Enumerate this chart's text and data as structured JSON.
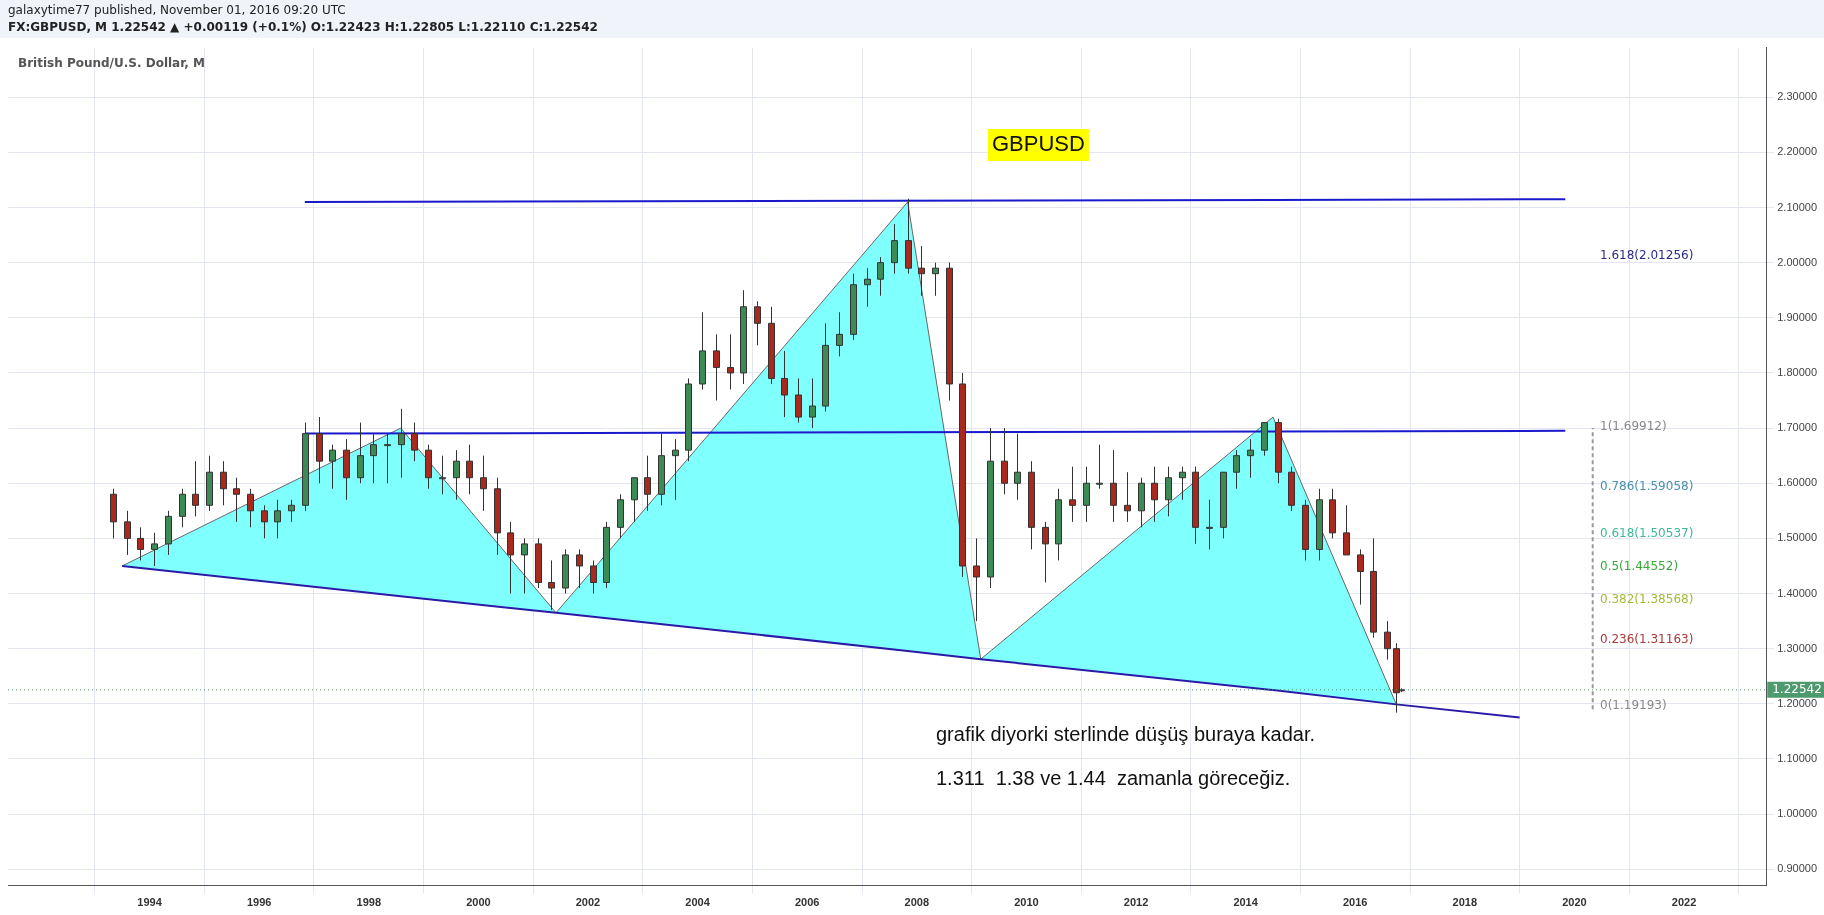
{
  "chart_data": {
    "type": "candlestick",
    "title": "FX:GBPUSD, M 1.22542 ▲ +0.00119 (+0.1%) O:1.22423 H:1.22805 L:1.22110 C:1.22542",
    "subtitle": "British Pound/U.S. Dollar, M",
    "x": [
      "1993-05",
      "1993-08",
      "1993-11",
      "1994-02",
      "1994-05",
      "1994-08",
      "1994-11",
      "1995-02",
      "1995-05",
      "1995-08",
      "1995-11",
      "1996-02",
      "1996-05",
      "1996-08",
      "1996-11",
      "1997-02",
      "1997-05",
      "1997-08",
      "1997-11",
      "1998-02",
      "1998-05",
      "1998-08",
      "1998-11",
      "1999-02",
      "1999-05",
      "1999-08",
      "1999-11",
      "2000-02",
      "2000-05",
      "2000-08",
      "2000-11",
      "2001-02",
      "2001-05",
      "2001-08",
      "2001-11",
      "2002-02",
      "2002-05",
      "2002-08",
      "2002-11",
      "2003-02",
      "2003-05",
      "2003-08",
      "2003-11",
      "2004-02",
      "2004-05",
      "2004-08",
      "2004-11",
      "2005-02",
      "2005-05",
      "2005-08",
      "2005-11",
      "2006-02",
      "2006-05",
      "2006-08",
      "2006-11",
      "2007-02",
      "2007-05",
      "2007-08",
      "2007-11",
      "2008-02",
      "2008-05",
      "2008-08",
      "2008-11",
      "2009-02",
      "2009-05",
      "2009-08",
      "2009-11",
      "2010-02",
      "2010-05",
      "2010-08",
      "2010-11",
      "2011-02",
      "2011-05",
      "2011-08",
      "2011-11",
      "2012-02",
      "2012-05",
      "2012-08",
      "2012-11",
      "2013-02",
      "2013-05",
      "2013-08",
      "2013-11",
      "2014-02",
      "2014-05",
      "2014-08",
      "2014-11",
      "2015-02",
      "2015-05",
      "2015-08",
      "2015-11",
      "2016-02",
      "2016-05",
      "2016-08",
      "2016-10",
      "2016-11"
    ],
    "ohlc": [
      [
        1.58,
        1.59,
        1.5,
        1.53
      ],
      [
        1.53,
        1.55,
        1.47,
        1.5
      ],
      [
        1.5,
        1.52,
        1.46,
        1.48
      ],
      [
        1.48,
        1.51,
        1.45,
        1.49
      ],
      [
        1.49,
        1.55,
        1.47,
        1.54
      ],
      [
        1.54,
        1.59,
        1.52,
        1.58
      ],
      [
        1.58,
        1.64,
        1.54,
        1.56
      ],
      [
        1.56,
        1.65,
        1.55,
        1.62
      ],
      [
        1.62,
        1.64,
        1.56,
        1.59
      ],
      [
        1.59,
        1.61,
        1.53,
        1.58
      ],
      [
        1.58,
        1.59,
        1.52,
        1.55
      ],
      [
        1.55,
        1.56,
        1.5,
        1.53
      ],
      [
        1.53,
        1.57,
        1.5,
        1.55
      ],
      [
        1.55,
        1.57,
        1.53,
        1.56
      ],
      [
        1.56,
        1.71,
        1.55,
        1.69
      ],
      [
        1.69,
        1.72,
        1.6,
        1.64
      ],
      [
        1.64,
        1.67,
        1.59,
        1.66
      ],
      [
        1.66,
        1.68,
        1.57,
        1.61
      ],
      [
        1.61,
        1.71,
        1.6,
        1.65
      ],
      [
        1.65,
        1.69,
        1.6,
        1.67
      ],
      [
        1.67,
        1.69,
        1.6,
        1.67
      ],
      [
        1.67,
        1.735,
        1.61,
        1.69
      ],
      [
        1.69,
        1.71,
        1.64,
        1.66
      ],
      [
        1.66,
        1.67,
        1.59,
        1.61
      ],
      [
        1.61,
        1.65,
        1.58,
        1.61
      ],
      [
        1.61,
        1.66,
        1.57,
        1.64
      ],
      [
        1.64,
        1.67,
        1.58,
        1.61
      ],
      [
        1.61,
        1.65,
        1.55,
        1.59
      ],
      [
        1.59,
        1.61,
        1.47,
        1.51
      ],
      [
        1.51,
        1.53,
        1.4,
        1.47
      ],
      [
        1.47,
        1.5,
        1.4,
        1.49
      ],
      [
        1.49,
        1.5,
        1.41,
        1.42
      ],
      [
        1.42,
        1.46,
        1.37,
        1.41
      ],
      [
        1.41,
        1.48,
        1.4,
        1.47
      ],
      [
        1.47,
        1.48,
        1.41,
        1.45
      ],
      [
        1.45,
        1.46,
        1.4,
        1.42
      ],
      [
        1.42,
        1.53,
        1.41,
        1.52
      ],
      [
        1.52,
        1.58,
        1.5,
        1.57
      ],
      [
        1.57,
        1.61,
        1.53,
        1.61
      ],
      [
        1.61,
        1.65,
        1.55,
        1.58
      ],
      [
        1.58,
        1.69,
        1.56,
        1.65
      ],
      [
        1.65,
        1.68,
        1.57,
        1.66
      ],
      [
        1.66,
        1.79,
        1.64,
        1.78
      ],
      [
        1.78,
        1.91,
        1.77,
        1.84
      ],
      [
        1.84,
        1.87,
        1.75,
        1.81
      ],
      [
        1.81,
        1.87,
        1.77,
        1.8
      ],
      [
        1.8,
        1.95,
        1.78,
        1.92
      ],
      [
        1.92,
        1.93,
        1.85,
        1.89
      ],
      [
        1.89,
        1.92,
        1.78,
        1.79
      ],
      [
        1.79,
        1.84,
        1.72,
        1.76
      ],
      [
        1.76,
        1.79,
        1.71,
        1.72
      ],
      [
        1.72,
        1.79,
        1.7,
        1.74
      ],
      [
        1.74,
        1.89,
        1.73,
        1.85
      ],
      [
        1.85,
        1.91,
        1.83,
        1.87
      ],
      [
        1.87,
        1.98,
        1.86,
        1.96
      ],
      [
        1.96,
        1.99,
        1.92,
        1.97
      ],
      [
        1.97,
        2.01,
        1.94,
        2.0
      ],
      [
        2.0,
        2.07,
        1.98,
        2.04
      ],
      [
        2.04,
        2.116,
        1.98,
        1.99
      ],
      [
        1.99,
        2.03,
        1.94,
        1.98
      ],
      [
        1.98,
        2.0,
        1.94,
        1.99
      ],
      [
        1.99,
        2.0,
        1.75,
        1.78
      ],
      [
        1.78,
        1.8,
        1.43,
        1.45
      ],
      [
        1.45,
        1.5,
        1.35,
        1.43
      ],
      [
        1.43,
        1.7,
        1.41,
        1.64
      ],
      [
        1.64,
        1.7,
        1.58,
        1.6
      ],
      [
        1.6,
        1.69,
        1.57,
        1.62
      ],
      [
        1.62,
        1.64,
        1.48,
        1.52
      ],
      [
        1.52,
        1.53,
        1.42,
        1.49
      ],
      [
        1.49,
        1.59,
        1.46,
        1.57
      ],
      [
        1.57,
        1.63,
        1.53,
        1.56
      ],
      [
        1.56,
        1.63,
        1.53,
        1.6
      ],
      [
        1.6,
        1.67,
        1.59,
        1.6
      ],
      [
        1.6,
        1.66,
        1.53,
        1.56
      ],
      [
        1.56,
        1.62,
        1.53,
        1.55
      ],
      [
        1.55,
        1.61,
        1.52,
        1.6
      ],
      [
        1.6,
        1.63,
        1.53,
        1.57
      ],
      [
        1.57,
        1.63,
        1.54,
        1.61
      ],
      [
        1.61,
        1.63,
        1.57,
        1.62
      ],
      [
        1.62,
        1.63,
        1.49,
        1.52
      ],
      [
        1.52,
        1.57,
        1.48,
        1.52
      ],
      [
        1.52,
        1.62,
        1.5,
        1.62
      ],
      [
        1.62,
        1.66,
        1.59,
        1.65
      ],
      [
        1.65,
        1.68,
        1.61,
        1.66
      ],
      [
        1.66,
        1.71,
        1.65,
        1.71
      ],
      [
        1.71,
        1.717,
        1.6,
        1.62
      ],
      [
        1.62,
        1.63,
        1.55,
        1.56
      ],
      [
        1.56,
        1.57,
        1.46,
        1.48
      ],
      [
        1.48,
        1.59,
        1.46,
        1.57
      ],
      [
        1.57,
        1.59,
        1.5,
        1.51
      ],
      [
        1.51,
        1.56,
        1.47,
        1.47
      ],
      [
        1.47,
        1.48,
        1.38,
        1.44
      ],
      [
        1.44,
        1.5,
        1.32,
        1.33
      ],
      [
        1.33,
        1.35,
        1.28,
        1.3
      ],
      [
        1.3,
        1.31,
        1.184,
        1.22
      ],
      [
        1.22423,
        1.22805,
        1.2211,
        1.22542
      ]
    ],
    "series": [
      {
        "type": "area",
        "color": "#80ffff",
        "x": [
          "1993-07",
          "1998-08",
          "2001-06",
          "2007-11",
          "2009-03",
          "2014-07",
          "2016-10"
        ],
        "values": [
          1.45,
          1.7,
          1.365,
          2.11,
          1.281,
          1.72,
          1.199
        ]
      },
      {
        "type": "line",
        "color": "#2a1aa8",
        "x": [
          "1993-07",
          "1998-08",
          "2001-06",
          "2007-11",
          "2009-03",
          "2014-07",
          "2016-10",
          "2019-01"
        ],
        "values": [
          1.45,
          1.395,
          1.365,
          1.296,
          1.281,
          1.225,
          1.199,
          1.175
        ]
      },
      {
        "type": "line",
        "color": "#1a1acc",
        "x": [
          "1996-11",
          "2019-11"
        ],
        "values": [
          2.11,
          2.115
        ]
      },
      {
        "type": "line",
        "color": "#1a1acc",
        "x": [
          "1996-11",
          "2019-11"
        ],
        "values": [
          1.69,
          1.695
        ]
      },
      {
        "type": "line",
        "color": "#999999",
        "line_style": "dashed",
        "x": [
          "2020-05",
          "2020-05"
        ],
        "values": [
          1.19,
          1.7
        ]
      }
    ],
    "xlim": [
      "1991-06",
      "2023-07"
    ],
    "xticks": [
      "1994",
      "1996",
      "1998",
      "2000",
      "2002",
      "2004",
      "2006",
      "2008",
      "2010",
      "2012",
      "2014",
      "2016",
      "2018",
      "2020",
      "2022"
    ],
    "ylim": [
      0.87,
      2.39
    ],
    "yticks": [
      {
        "value": 0.9,
        "label": "0.90000"
      },
      {
        "value": 1.0,
        "label": "1.00000"
      },
      {
        "value": 1.1,
        "label": "1.10000"
      },
      {
        "value": 1.2,
        "label": "1.20000"
      },
      {
        "value": 1.3,
        "label": "1.30000"
      },
      {
        "value": 1.4,
        "label": "1.40000"
      },
      {
        "value": 1.5,
        "label": "1.50000"
      },
      {
        "value": 1.6,
        "label": "1.60000"
      },
      {
        "value": 1.7,
        "label": "1.70000"
      },
      {
        "value": 1.8,
        "label": "1.80000"
      },
      {
        "value": 1.9,
        "label": "1.90000"
      },
      {
        "value": 2.0,
        "label": "2.00000"
      },
      {
        "value": 2.1,
        "label": "2.10000"
      },
      {
        "value": 2.2,
        "label": "2.20000"
      },
      {
        "value": 2.3,
        "label": "2.30000"
      }
    ],
    "grid": true,
    "legend": false,
    "marker": "none",
    "ref_lines": [
      {
        "axis": "y",
        "value": 1.22542,
        "label": "1.22542",
        "color": "#4e9a6e",
        "line_style": "dotted"
      }
    ],
    "annotations": [
      "galaxytime77 published, November 01, 2016 09:20 UTC",
      "GBPUSD",
      "grafik diyorki sterlinde düşüş buraya kadar.",
      "1.311  1.38 ve 1.44  zamanla göreceğiz.",
      "1.618(2.01256)",
      "1(1.69912)",
      "0.786(1.59058)",
      "0.618(1.50537)",
      "0.5(1.44552)",
      "0.382(1.38568)",
      "0.236(1.31163)",
      "0(1.19193)"
    ]
  }
}
